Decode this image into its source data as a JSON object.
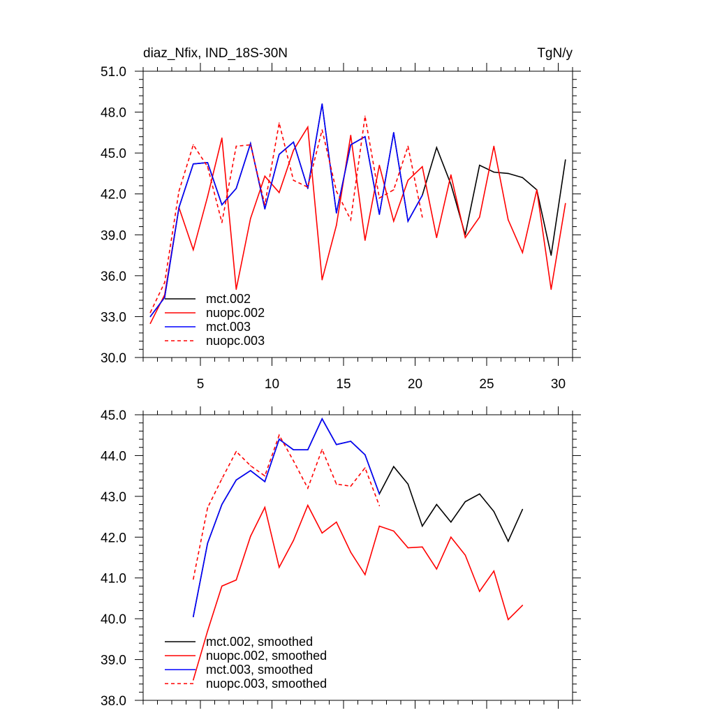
{
  "chart_data": [
    {
      "type": "line",
      "title": "diaz_Nfix, IND_18S-30N",
      "units": "TgN/y",
      "xlim": [
        1,
        31
      ],
      "ylim": [
        30,
        51
      ],
      "xticks": [
        5,
        10,
        15,
        20,
        25,
        30
      ],
      "xtick_labels": [
        "5",
        "10",
        "15",
        "20",
        "25",
        "30"
      ],
      "yticks": [
        30,
        33,
        36,
        39,
        42,
        45,
        48,
        51
      ],
      "ytick_labels": [
        "30.0",
        "33.0",
        "36.0",
        "39.0",
        "42.0",
        "45.0",
        "48.0",
        "51.0"
      ],
      "legend_position": "bottom-left",
      "series": [
        {
          "name": "mct.002",
          "color": "#000000",
          "dash": "solid",
          "x": [
            1.5,
            2.5,
            3.5,
            4.5,
            5.5,
            6.5,
            7.5,
            8.5,
            9.5,
            10.5,
            11.5,
            12.5,
            13.5,
            14.5,
            15.5,
            16.5,
            17.5,
            18.5,
            19.5,
            20.5,
            21.5,
            22.5,
            23.5,
            24.5,
            25.5,
            26.5,
            27.5,
            28.5,
            29.5,
            30.5
          ],
          "y": [
            33.0,
            34.4,
            41.0,
            44.2,
            44.3,
            41.2,
            42.4,
            45.7,
            40.9,
            44.9,
            45.8,
            42.4,
            48.6,
            40.6,
            45.6,
            46.2,
            40.5,
            46.5,
            40.0,
            41.9,
            45.4,
            42.7,
            39.0,
            44.1,
            43.6,
            43.5,
            43.2,
            42.3,
            37.5,
            44.5
          ]
        },
        {
          "name": "nuopc.002",
          "color": "#ff0000",
          "dash": "solid",
          "x": [
            1.5,
            2.5,
            3.5,
            4.5,
            5.5,
            6.5,
            7.5,
            8.5,
            9.5,
            10.5,
            11.5,
            12.5,
            13.5,
            14.5,
            15.5,
            16.5,
            17.5,
            18.5,
            19.5,
            20.5,
            21.5,
            22.5,
            23.5,
            24.5,
            25.5,
            26.5,
            27.5,
            28.5,
            29.5,
            30.5
          ],
          "y": [
            32.5,
            34.6,
            41.0,
            37.9,
            41.8,
            46.1,
            35.0,
            40.2,
            43.3,
            42.1,
            45.2,
            46.9,
            35.7,
            39.7,
            46.3,
            38.6,
            44.1,
            40.0,
            43.0,
            44.0,
            38.8,
            43.4,
            38.8,
            40.3,
            45.5,
            40.1,
            37.7,
            42.3,
            35.0,
            41.3
          ]
        },
        {
          "name": "mct.003",
          "color": "#0000ff",
          "dash": "solid",
          "x": [
            1.5,
            2.5,
            3.5,
            4.5,
            5.5,
            6.5,
            7.5,
            8.5,
            9.5,
            10.5,
            11.5,
            12.5,
            13.5,
            14.5,
            15.5,
            16.5,
            17.5,
            18.5,
            19.5,
            20.5
          ],
          "y": [
            33.0,
            34.4,
            41.0,
            44.2,
            44.3,
            41.2,
            42.4,
            45.7,
            40.9,
            44.9,
            45.8,
            42.4,
            48.6,
            40.6,
            45.6,
            46.2,
            40.5,
            46.5,
            40.0,
            41.9
          ]
        },
        {
          "name": "nuopc.003",
          "color": "#ff0000",
          "dash": "dashed",
          "x": [
            1.5,
            2.5,
            3.5,
            4.5,
            5.5,
            6.5,
            7.5,
            8.5,
            9.5,
            10.5,
            11.5,
            12.5,
            13.5,
            14.5,
            15.5,
            16.5,
            17.5,
            18.5,
            19.5,
            20.5
          ],
          "y": [
            33.3,
            35.5,
            42.2,
            45.6,
            44.0,
            39.9,
            45.5,
            45.6,
            41.2,
            47.2,
            43.0,
            42.5,
            46.7,
            42.2,
            40.1,
            47.7,
            41.7,
            42.3,
            45.5,
            40.3
          ]
        }
      ]
    },
    {
      "type": "line",
      "xlim": [
        1,
        31
      ],
      "ylim": [
        38,
        45
      ],
      "xticks": [
        5,
        10,
        15,
        20,
        25,
        30
      ],
      "yticks": [
        38,
        39,
        40,
        41,
        42,
        43,
        44,
        45
      ],
      "ytick_labels": [
        "38.0",
        "39.0",
        "40.0",
        "41.0",
        "42.0",
        "43.0",
        "44.0",
        "45.0"
      ],
      "legend_position": "bottom-left",
      "series": [
        {
          "name": "mct.002, smoothed",
          "color": "#000000",
          "dash": "solid",
          "x": [
            4.5,
            5.5,
            6.5,
            7.5,
            8.5,
            9.5,
            10.5,
            11.5,
            12.5,
            13.5,
            14.5,
            15.5,
            16.5,
            17.5,
            18.5,
            19.5,
            20.5,
            21.5,
            22.5,
            23.5,
            24.5,
            25.5,
            26.5,
            27.5
          ],
          "y": [
            40.05,
            41.85,
            42.8,
            43.4,
            43.63,
            43.36,
            44.4,
            44.14,
            44.14,
            44.9,
            44.27,
            44.35,
            44.02,
            43.06,
            43.73,
            43.3,
            42.27,
            42.8,
            42.37,
            42.87,
            43.06,
            42.63,
            41.9,
            42.68
          ]
        },
        {
          "name": "nuopc.002, smoothed",
          "color": "#ff0000",
          "dash": "solid",
          "x": [
            4.5,
            5.5,
            6.5,
            7.5,
            8.5,
            9.5,
            10.5,
            11.5,
            12.5,
            13.5,
            14.5,
            15.5,
            16.5,
            17.5,
            18.5,
            19.5,
            20.5,
            21.5,
            22.5,
            23.5,
            24.5,
            25.5,
            26.5,
            27.5
          ],
          "y": [
            38.5,
            39.7,
            40.8,
            40.95,
            42.02,
            42.73,
            41.26,
            41.92,
            42.78,
            42.1,
            42.37,
            41.63,
            41.08,
            42.27,
            42.15,
            41.74,
            41.76,
            41.22,
            42.0,
            41.56,
            40.67,
            41.17,
            39.98,
            40.33
          ]
        },
        {
          "name": "mct.003, smoothed",
          "color": "#0000ff",
          "dash": "solid",
          "x": [
            4.5,
            5.5,
            6.5,
            7.5,
            8.5,
            9.5,
            10.5,
            11.5,
            12.5,
            13.5,
            14.5,
            15.5,
            16.5,
            17.5
          ],
          "y": [
            40.05,
            41.85,
            42.8,
            43.4,
            43.63,
            43.36,
            44.4,
            44.14,
            44.14,
            44.9,
            44.27,
            44.35,
            44.02,
            43.06
          ]
        },
        {
          "name": "nuopc.003, smoothed",
          "color": "#ff0000",
          "dash": "dashed",
          "x": [
            4.5,
            5.5,
            6.5,
            7.5,
            8.5,
            9.5,
            10.5,
            11.5,
            12.5,
            13.5,
            14.5,
            15.5,
            16.5,
            17.5
          ],
          "y": [
            40.97,
            42.72,
            43.43,
            44.1,
            43.75,
            43.5,
            44.5,
            43.87,
            43.2,
            44.15,
            43.3,
            43.25,
            43.7,
            42.77
          ]
        }
      ]
    }
  ]
}
